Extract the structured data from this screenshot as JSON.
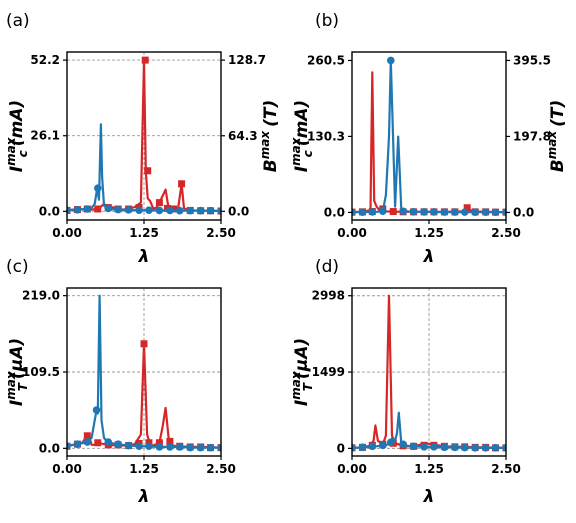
{
  "colors": {
    "red": "#d62728",
    "blue": "#1f77b4",
    "grid": "#9a9a9a"
  },
  "chart_data": [
    {
      "type": "line",
      "panel": "(a)",
      "xlabel": "λ",
      "ylabel": "I_c^max (mA)",
      "y2label": "B^max (T)",
      "xlim": [
        0,
        2.5
      ],
      "xticks": [
        "0.00",
        "1.25",
        "2.50"
      ],
      "ylim": [
        -3,
        55
      ],
      "yticks": [
        "0.0",
        "26.1",
        "52.2"
      ],
      "y2lim": [
        -7.4,
        135.6
      ],
      "y2ticks": [
        "0.0",
        "64.3",
        "128.7"
      ],
      "grid": true,
      "series": [
        {
          "color": "red",
          "marker": "square",
          "axis": "left",
          "x": [
            0.0,
            0.1,
            0.2,
            0.3,
            0.4,
            0.5,
            0.6,
            0.7,
            0.8,
            0.9,
            1.0,
            1.1,
            1.2,
            1.25,
            1.28,
            1.31,
            1.35,
            1.4,
            1.45,
            1.5,
            1.6,
            1.65,
            1.7,
            1.8,
            1.86,
            1.9,
            1.95,
            2.0,
            2.2,
            2.5
          ],
          "y": [
            0.3,
            0.6,
            0.8,
            0.6,
            0.6,
            0.8,
            2.5,
            1.5,
            1.2,
            0.6,
            0.8,
            1.5,
            3.0,
            52.2,
            14.0,
            4.5,
            3.5,
            1.0,
            1.2,
            3.0,
            7.5,
            1.0,
            0.8,
            0.5,
            9.5,
            1.0,
            0.6,
            0.3,
            0.2,
            0.1
          ],
          "markers_x": [
            0.0,
            0.17,
            0.33,
            0.5,
            0.67,
            0.83,
            1.0,
            1.17,
            1.27,
            1.31,
            1.5,
            1.63,
            1.73,
            1.86,
            2.0,
            2.17,
            2.33,
            2.5
          ],
          "markers_y": [
            0.3,
            0.6,
            0.8,
            0.8,
            1.3,
            0.8,
            0.8,
            1.3,
            52.2,
            14.0,
            3.0,
            1.0,
            0.8,
            9.5,
            0.3,
            0.2,
            0.2,
            0.1
          ]
        },
        {
          "color": "blue",
          "marker": "circle",
          "axis": "left",
          "x": [
            0.0,
            0.1,
            0.2,
            0.3,
            0.4,
            0.45,
            0.49,
            0.52,
            0.55,
            0.57,
            0.6,
            0.65,
            0.7,
            0.8,
            0.9,
            1.0,
            1.1,
            1.2,
            1.3,
            1.5,
            1.7,
            1.9,
            2.1,
            2.3,
            2.5
          ],
          "y": [
            0.3,
            0.4,
            0.6,
            0.8,
            1.2,
            2.5,
            8.0,
            4.0,
            30.0,
            12.0,
            2.0,
            1.0,
            0.8,
            0.6,
            0.5,
            0.5,
            0.4,
            0.4,
            0.4,
            0.3,
            0.3,
            0.2,
            0.2,
            0.2,
            0.1
          ],
          "markers_x": [
            0.0,
            0.17,
            0.33,
            0.5,
            0.67,
            0.83,
            1.0,
            1.17,
            1.33,
            1.5,
            1.67,
            1.83,
            2.0,
            2.17,
            2.33,
            2.5
          ],
          "markers_y": [
            0.3,
            0.5,
            0.8,
            8.0,
            1.0,
            0.6,
            0.5,
            0.4,
            0.4,
            0.3,
            0.3,
            0.2,
            0.2,
            0.2,
            0.2,
            0.1
          ]
        }
      ]
    },
    {
      "type": "line",
      "panel": "(b)",
      "xlabel": "λ",
      "ylabel": "I_c^max (mA)",
      "y2label": "B^max (T)",
      "xlim": [
        0,
        2.5
      ],
      "xticks": [
        "0.00",
        "1.25",
        "2.50"
      ],
      "ylim": [
        -13,
        275
      ],
      "yticks": [
        "0.0",
        "130.3",
        "260.5"
      ],
      "y2lim": [
        -19.7,
        417.5
      ],
      "y2ticks": [
        "0.0",
        "197.8",
        "395.5"
      ],
      "grid": false,
      "series": [
        {
          "color": "red",
          "marker": "square",
          "axis": "left",
          "x": [
            0.0,
            0.1,
            0.2,
            0.3,
            0.33,
            0.36,
            0.4,
            0.45,
            0.5,
            0.6,
            0.8,
            1.0,
            1.2,
            1.5,
            1.8,
            1.87,
            1.95,
            2.2,
            2.5
          ],
          "y": [
            0.5,
            1.0,
            1.5,
            4.0,
            240.0,
            20.0,
            10.0,
            3.0,
            2.0,
            1.5,
            1.0,
            1.0,
            1.0,
            1.0,
            2.0,
            8.0,
            2.0,
            1.0,
            0.5
          ],
          "markers_x": [
            0.0,
            0.17,
            0.33,
            0.5,
            0.67,
            0.83,
            1.0,
            1.17,
            1.33,
            1.5,
            1.67,
            1.87,
            2.0,
            2.17,
            2.33,
            2.5
          ],
          "markers_y": [
            0.5,
            1.0,
            1.5,
            6.0,
            1.5,
            1.0,
            1.0,
            1.0,
            1.0,
            1.0,
            1.0,
            8.0,
            1.0,
            1.0,
            0.5,
            0.5
          ]
        },
        {
          "color": "blue",
          "marker": "circle",
          "axis": "left",
          "x": [
            0.0,
            0.2,
            0.4,
            0.5,
            0.55,
            0.6,
            0.63,
            0.66,
            0.7,
            0.75,
            0.8,
            0.9,
            1.0,
            1.2,
            1.5,
            1.8,
            2.1,
            2.5
          ],
          "y": [
            0.3,
            0.5,
            1.0,
            2.0,
            30.0,
            130.0,
            260.5,
            150.0,
            10.0,
            130.0,
            5.0,
            2.0,
            1.0,
            0.8,
            0.6,
            0.5,
            0.4,
            0.3
          ],
          "markers_x": [
            0.0,
            0.17,
            0.33,
            0.5,
            0.63,
            0.83,
            1.0,
            1.17,
            1.33,
            1.5,
            1.67,
            1.83,
            2.0,
            2.17,
            2.33,
            2.5
          ],
          "markers_y": [
            0.3,
            0.4,
            0.8,
            2.0,
            260.5,
            2.0,
            1.0,
            0.8,
            0.8,
            0.6,
            0.6,
            0.5,
            0.4,
            0.4,
            0.3,
            0.3
          ]
        }
      ]
    },
    {
      "type": "line",
      "panel": "(c)",
      "xlabel": "λ",
      "ylabel": "I_T^max (μA)",
      "xlim": [
        0,
        2.5
      ],
      "xticks": [
        "0.00",
        "1.25",
        "2.50"
      ],
      "ylim": [
        -11,
        230
      ],
      "yticks": [
        "0.0",
        "109.5",
        "219.0"
      ],
      "grid": true,
      "series": [
        {
          "color": "red",
          "marker": "square",
          "axis": "left",
          "x": [
            0.0,
            0.1,
            0.2,
            0.25,
            0.3,
            0.35,
            0.4,
            0.45,
            0.5,
            0.6,
            0.7,
            0.8,
            0.9,
            1.0,
            1.1,
            1.2,
            1.25,
            1.3,
            1.35,
            1.4,
            1.5,
            1.55,
            1.6,
            1.65,
            1.7,
            1.8,
            2.0,
            2.2,
            2.5
          ],
          "y": [
            3.0,
            5.0,
            6.0,
            8.0,
            15.0,
            20.0,
            5.0,
            5.0,
            8.0,
            6.0,
            4.0,
            5.0,
            4.0,
            4.0,
            6.0,
            20.0,
            150.0,
            20.0,
            5.0,
            4.0,
            8.0,
            30.0,
            58.0,
            15.0,
            4.0,
            3.0,
            2.0,
            2.0,
            1.0
          ],
          "markers_x": [
            0.0,
            0.17,
            0.33,
            0.5,
            0.67,
            0.83,
            1.0,
            1.17,
            1.25,
            1.33,
            1.5,
            1.67,
            1.83,
            2.0,
            2.17,
            2.33,
            2.5
          ],
          "markers_y": [
            3.0,
            6.0,
            18.0,
            8.0,
            5.0,
            5.0,
            4.0,
            7.0,
            150.0,
            8.0,
            8.0,
            10.0,
            3.0,
            2.0,
            2.0,
            1.0,
            1.0
          ]
        },
        {
          "color": "blue",
          "marker": "circle",
          "axis": "left",
          "x": [
            0.0,
            0.1,
            0.2,
            0.3,
            0.4,
            0.45,
            0.48,
            0.5,
            0.53,
            0.56,
            0.6,
            0.65,
            0.7,
            0.8,
            0.9,
            1.0,
            1.2,
            1.5,
            1.8,
            2.1,
            2.5
          ],
          "y": [
            3.0,
            5.0,
            7.0,
            8.0,
            15.0,
            40.0,
            55.0,
            50.0,
            219.0,
            40.0,
            15.0,
            10.0,
            8.0,
            6.0,
            5.0,
            4.0,
            3.0,
            2.0,
            2.0,
            1.0,
            1.0
          ],
          "markers_x": [
            0.0,
            0.17,
            0.33,
            0.48,
            0.67,
            0.83,
            1.0,
            1.17,
            1.33,
            1.5,
            1.67,
            1.83,
            2.0,
            2.17,
            2.33,
            2.5
          ],
          "markers_y": [
            3.0,
            6.0,
            9.0,
            55.0,
            9.0,
            6.0,
            4.0,
            3.0,
            3.0,
            2.0,
            2.0,
            2.0,
            1.0,
            1.0,
            1.0,
            1.0
          ]
        }
      ]
    },
    {
      "type": "line",
      "panel": "(d)",
      "xlabel": "λ",
      "ylabel": "I_T^max (μA)",
      "xlim": [
        0,
        2.5
      ],
      "xticks": [
        "0.00",
        "1.25",
        "2.50"
      ],
      "ylim": [
        -150,
        3150
      ],
      "yticks": [
        "0",
        "1499",
        "2998"
      ],
      "grid": true,
      "series": [
        {
          "color": "red",
          "marker": "square",
          "axis": "left",
          "x": [
            0.0,
            0.2,
            0.3,
            0.35,
            0.38,
            0.42,
            0.5,
            0.55,
            0.6,
            0.65,
            0.7,
            0.8,
            0.9,
            1.0,
            1.2,
            1.5,
            1.8,
            2.1,
            2.5
          ],
          "y": [
            10.0,
            20.0,
            60.0,
            150.0,
            450.0,
            150.0,
            80.0,
            250.0,
            2998.0,
            250.0,
            100.0,
            60.0,
            40.0,
            40.0,
            100.0,
            40.0,
            30.0,
            20.0,
            10.0
          ],
          "markers_x": [
            0.0,
            0.17,
            0.33,
            0.5,
            0.67,
            0.83,
            1.0,
            1.17,
            1.33,
            1.5,
            1.67,
            1.83,
            2.0,
            2.17,
            2.33,
            2.5
          ],
          "markers_y": [
            10.0,
            20.0,
            60.0,
            80.0,
            100.0,
            50.0,
            40.0,
            60.0,
            60.0,
            40.0,
            30.0,
            30.0,
            20.0,
            20.0,
            10.0,
            10.0
          ]
        },
        {
          "color": "blue",
          "marker": "circle",
          "axis": "left",
          "x": [
            0.0,
            0.2,
            0.4,
            0.5,
            0.6,
            0.65,
            0.7,
            0.73,
            0.76,
            0.8,
            0.9,
            1.0,
            1.2,
            1.5,
            1.8,
            2.1,
            2.5
          ],
          "y": [
            10.0,
            20.0,
            40.0,
            60.0,
            80.0,
            200.0,
            150.0,
            300.0,
            700.0,
            100.0,
            50.0,
            40.0,
            30.0,
            20.0,
            15.0,
            10.0,
            10.0
          ],
          "markers_x": [
            0.0,
            0.17,
            0.33,
            0.5,
            0.63,
            0.83,
            1.0,
            1.17,
            1.33,
            1.5,
            1.67,
            1.83,
            2.0,
            2.17,
            2.33,
            2.5
          ],
          "markers_y": [
            10.0,
            20.0,
            40.0,
            60.0,
            120.0,
            80.0,
            40.0,
            30.0,
            30.0,
            20.0,
            20.0,
            15.0,
            10.0,
            10.0,
            10.0,
            10.0
          ]
        }
      ]
    }
  ]
}
